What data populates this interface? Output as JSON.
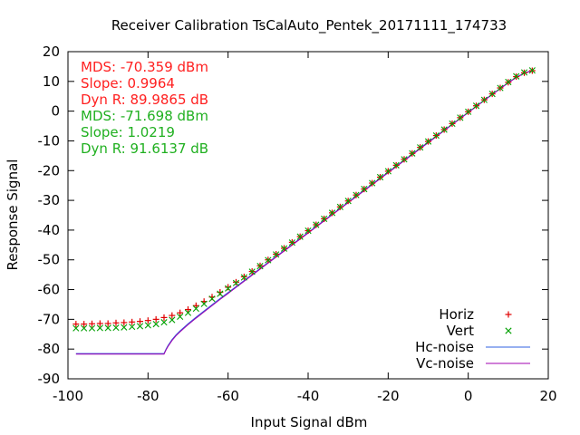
{
  "chart_data": {
    "type": "scatter",
    "title": "Receiver Calibration TsCalAuto_Pentek_20171111_174733",
    "xlabel": "Input Signal dBm",
    "ylabel": "Response Signal",
    "xlim": [
      -100,
      20
    ],
    "ylim": [
      -90,
      20
    ],
    "xticks": [
      "-100",
      "-80",
      "-60",
      "-40",
      "-20",
      "0",
      "20"
    ],
    "yticks": [
      "20",
      "10",
      "0",
      "-10",
      "-20",
      "-30",
      "-40",
      "-50",
      "-60",
      "-70",
      "-80",
      "-90"
    ],
    "grid": false,
    "legend_position": "bottom-right",
    "annotations": [
      {
        "text": "MDS: -70.359 dBm",
        "color": "#ff2020"
      },
      {
        "text": "Slope: 0.9964",
        "color": "#ff2020"
      },
      {
        "text": "Dyn R: 89.9865 dB",
        "color": "#ff2020"
      },
      {
        "text": "MDS: -71.698 dBm",
        "color": "#20b020"
      },
      {
        "text": "Slope: 1.0219",
        "color": "#20b020"
      },
      {
        "text": "Dyn R: 91.6137 dB",
        "color": "#20b020"
      }
    ],
    "series": [
      {
        "name": "Horiz",
        "style": "points-plus",
        "color": "#e00000",
        "x": [
          -98,
          -96,
          -94,
          -92,
          -90,
          -88,
          -86,
          -84,
          -82,
          -80,
          -78,
          -76,
          -74,
          -72,
          -70,
          -68,
          -66,
          -64,
          -62,
          -60,
          -58,
          -56,
          -54,
          -52,
          -50,
          -48,
          -46,
          -44,
          -42,
          -40,
          -38,
          -36,
          -34,
          -32,
          -30,
          -28,
          -26,
          -24,
          -22,
          -20,
          -18,
          -16,
          -14,
          -12,
          -10,
          -8,
          -6,
          -4,
          -2,
          0,
          2,
          4,
          6,
          8,
          10,
          12,
          14,
          16
        ],
        "y": [
          -71.6,
          -71.6,
          -71.5,
          -71.4,
          -71.4,
          -71.2,
          -71.1,
          -70.9,
          -70.7,
          -70.4,
          -70.0,
          -69.4,
          -68.7,
          -67.8,
          -66.7,
          -65.4,
          -64.0,
          -62.5,
          -60.9,
          -59.2,
          -57.5,
          -55.7,
          -53.9,
          -52.0,
          -50.0,
          -48.1,
          -46.1,
          -44.1,
          -42.2,
          -40.2,
          -38.2,
          -36.2,
          -34.2,
          -32.2,
          -30.2,
          -28.2,
          -26.2,
          -24.2,
          -22.2,
          -20.2,
          -18.2,
          -16.2,
          -14.2,
          -12.2,
          -10.2,
          -8.2,
          -6.2,
          -4.2,
          -2.2,
          -0.2,
          1.8,
          3.8,
          5.8,
          7.8,
          9.7,
          11.6,
          12.9,
          13.6
        ]
      },
      {
        "name": "Vert",
        "style": "points-x",
        "color": "#00a000",
        "x": [
          -98,
          -96,
          -94,
          -92,
          -90,
          -88,
          -86,
          -84,
          -82,
          -80,
          -78,
          -76,
          -74,
          -72,
          -70,
          -68,
          -66,
          -64,
          -62,
          -60,
          -58,
          -56,
          -54,
          -52,
          -50,
          -48,
          -46,
          -44,
          -42,
          -40,
          -38,
          -36,
          -34,
          -32,
          -30,
          -28,
          -26,
          -24,
          -22,
          -20,
          -18,
          -16,
          -14,
          -12,
          -10,
          -8,
          -6,
          -4,
          -2,
          0,
          2,
          4,
          6,
          8,
          10,
          12,
          14,
          16
        ],
        "y": [
          -73.0,
          -73.0,
          -73.0,
          -72.9,
          -72.9,
          -72.8,
          -72.7,
          -72.5,
          -72.3,
          -72.0,
          -71.6,
          -71.0,
          -70.2,
          -69.1,
          -67.8,
          -66.4,
          -64.8,
          -63.1,
          -61.4,
          -59.6,
          -57.8,
          -55.9,
          -54.0,
          -52.1,
          -50.1,
          -48.2,
          -46.2,
          -44.2,
          -42.2,
          -40.2,
          -38.2,
          -36.2,
          -34.2,
          -32.2,
          -30.2,
          -28.2,
          -26.2,
          -24.2,
          -22.2,
          -20.2,
          -18.2,
          -16.2,
          -14.2,
          -12.2,
          -10.2,
          -8.2,
          -6.2,
          -4.2,
          -2.2,
          -0.2,
          1.8,
          3.8,
          5.8,
          7.8,
          9.8,
          11.7,
          13.0,
          13.7
        ]
      },
      {
        "name": "Hc-noise",
        "style": "line",
        "color": "#3060e0",
        "x": [
          -98,
          -76,
          -75.5,
          -75,
          -74,
          -73,
          -72,
          -70,
          -68,
          -66,
          -64,
          -62,
          -60,
          -50,
          -40,
          -30,
          -20,
          -10,
          0,
          5,
          10,
          12,
          14,
          16
        ],
        "y": [
          -81.5,
          -81.5,
          -80.0,
          -78.8,
          -76.8,
          -75.2,
          -73.9,
          -71.5,
          -69.3,
          -67.2,
          -65.1,
          -63.0,
          -61.0,
          -50.9,
          -40.8,
          -30.6,
          -20.5,
          -10.4,
          -0.4,
          4.7,
          9.6,
          11.4,
          12.8,
          13.7
        ]
      },
      {
        "name": "Vc-noise",
        "style": "line",
        "color": "#a000b0",
        "x": [
          -98,
          -76,
          -75.5,
          -75,
          -74,
          -73,
          -72,
          -70,
          -68,
          -66,
          -64,
          -62,
          -60,
          -50,
          -40,
          -30,
          -20,
          -10,
          0,
          5,
          10,
          12,
          14,
          16
        ],
        "y": [
          -81.7,
          -81.7,
          -80.3,
          -79.1,
          -77.1,
          -75.5,
          -74.2,
          -71.8,
          -69.6,
          -67.5,
          -65.4,
          -63.3,
          -61.3,
          -51.1,
          -41.0,
          -30.8,
          -20.7,
          -10.6,
          -0.5,
          4.6,
          9.5,
          11.3,
          12.7,
          13.6
        ]
      }
    ]
  }
}
